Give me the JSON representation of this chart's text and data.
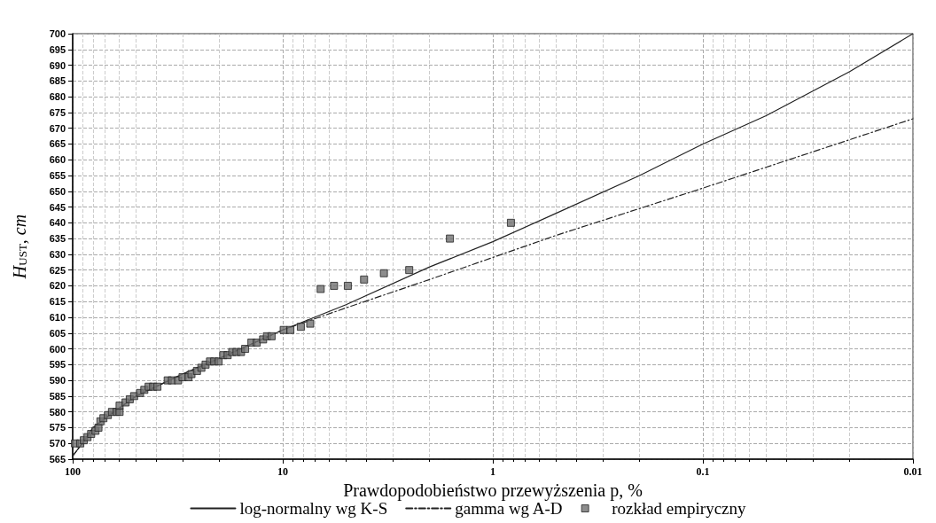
{
  "chart_data": {
    "type": "line",
    "xlabel": "Prawdopodobieństwo przewyższenia p, %",
    "ylabel": "H$_{UST}$, cm",
    "log": "x",
    "xlim": [
      100,
      0.01
    ],
    "xticks": [
      100,
      10,
      1,
      0.1,
      0.01
    ],
    "ylim": [
      565,
      700
    ],
    "yticks": [
      565,
      570,
      575,
      580,
      585,
      590,
      595,
      600,
      605,
      610,
      615,
      620,
      625,
      630,
      635,
      640,
      645,
      650,
      655,
      660,
      665,
      670,
      675,
      680,
      685,
      690,
      695,
      700
    ],
    "grid": true,
    "legend": "bottom",
    "marker": "none",
    "series": [
      {
        "name": "log-normalny wg K-S",
        "color": "#222222",
        "line_style": "solid",
        "x": [
          100,
          90,
          80,
          70,
          50,
          30,
          20,
          10,
          5,
          2,
          1,
          0.5,
          0.2,
          0.1,
          0.05,
          0.02,
          0.01
        ],
        "values": [
          566,
          570,
          575,
          578,
          585,
          592,
          597,
          606,
          614,
          626,
          634,
          643,
          655,
          665,
          674,
          688,
          700
        ]
      },
      {
        "name": "gamma wg A-D",
        "color": "#222222",
        "line_style": "dashed",
        "x": [
          100,
          90,
          80,
          70,
          50,
          30,
          20,
          10,
          5,
          2,
          1,
          0.5,
          0.1,
          0.01
        ],
        "values": [
          566,
          570,
          575,
          578,
          585,
          592,
          597,
          606,
          613,
          622,
          629,
          636,
          651,
          673
        ]
      },
      {
        "name": "rozkład empiryczny",
        "type": "scatter",
        "marker": "square",
        "color": "#707070",
        "x": [
          97.5,
          92,
          88.5,
          85,
          81.7,
          77.9,
          75.4,
          73.8,
          71.4,
          68,
          65,
          61.8,
          59.8,
          59.8,
          56,
          53.5,
          51,
          47.8,
          45.6,
          43.5,
          41.4,
          39.5,
          35.3,
          33.7,
          31.5,
          30,
          28.1,
          27.2,
          25.6,
          24.4,
          23.3,
          22.2,
          21.2,
          20.2,
          19.2,
          18.3,
          17.4,
          16.6,
          15.8,
          15.1,
          14.1,
          13.3,
          12.4,
          11.9,
          11.3,
          9.9,
          9.2,
          8.2,
          7.4,
          6.6,
          5.7,
          4.9,
          4.1,
          3.3,
          2.5,
          1.6,
          0.82
        ],
        "values": [
          570,
          570,
          571,
          572,
          573,
          574,
          575,
          577,
          578,
          579,
          580,
          580,
          580,
          582,
          583,
          584,
          585,
          586,
          587,
          588,
          588,
          588,
          590,
          590,
          590,
          591,
          591,
          592,
          593,
          594,
          595,
          596,
          596,
          596,
          598,
          598,
          599,
          599,
          599,
          600,
          602,
          602,
          603,
          604,
          604,
          606,
          606,
          607,
          608,
          619,
          620,
          620,
          622,
          624,
          625,
          635,
          640
        ]
      }
    ]
  }
}
